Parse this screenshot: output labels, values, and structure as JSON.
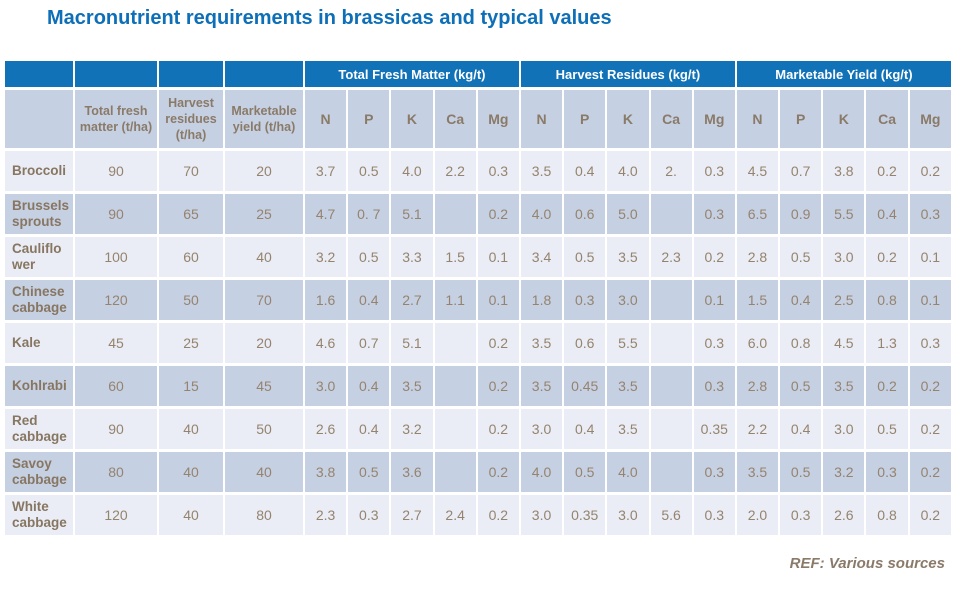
{
  "title": "Macronutrient requirements in brassicas and typical values",
  "footer": {
    "ref": "REF: Various sources"
  },
  "colors": {
    "title_blue": "#0d6fb7",
    "header_blue": "#1172b8",
    "row_light": "#eaedf5",
    "row_dark": "#c6d0e3",
    "text_brown": "#8a7a68"
  },
  "table": {
    "groups": [
      "Total Fresh Matter (kg/t)",
      "Harvest Residues (kg/t)",
      "Marketable Yield (kg/t)"
    ],
    "stub_headers": [
      "Total fresh matter (t/ha)",
      "Harvest residues (t/ha)",
      "Marketable yield (t/ha)"
    ],
    "nutrients": [
      "N",
      "P",
      "K",
      "Ca",
      "Mg"
    ],
    "rows": [
      {
        "crop": "Broccoli",
        "values": [
          "90",
          "70",
          "20",
          "3.7",
          "0.5",
          "4.0",
          "2.2",
          "0.3",
          "3.5",
          "0.4",
          "4.0",
          "2.",
          "0.3",
          "4.5",
          "0.7",
          "3.8",
          "0.2",
          "0.2"
        ]
      },
      {
        "crop": "Brussels sprouts",
        "values": [
          "90",
          "65",
          "25",
          "4.7",
          "0. 7",
          "5.1",
          "",
          "0.2",
          "4.0",
          "0.6",
          "5.0",
          "",
          "0.3",
          "6.5",
          "0.9",
          "5.5",
          "0.4",
          "0.3"
        ]
      },
      {
        "crop": "Cauliflower",
        "values": [
          "100",
          "60",
          "40",
          "3.2",
          "0.5",
          "3.3",
          "1.5",
          "0.1",
          "3.4",
          "0.5",
          "3.5",
          "2.3",
          "0.2",
          "2.8",
          "0.5",
          "3.0",
          "0.2",
          "0.1"
        ]
      },
      {
        "crop": "Chinese cabbage",
        "values": [
          "120",
          "50",
          "70",
          "1.6",
          "0.4",
          "2.7",
          "1.1",
          "0.1",
          "1.8",
          "0.3",
          "3.0",
          "",
          "0.1",
          "1.5",
          "0.4",
          "2.5",
          "0.8",
          "0.1"
        ]
      },
      {
        "crop": "Kale",
        "values": [
          "45",
          "25",
          "20",
          "4.6",
          "0.7",
          "5.1",
          "",
          "0.2",
          "3.5",
          "0.6",
          "5.5",
          "",
          "0.3",
          "6.0",
          "0.8",
          "4.5",
          "1.3",
          "0.3"
        ]
      },
      {
        "crop": "Kohlrabi",
        "values": [
          "60",
          "15",
          "45",
          "3.0",
          "0.4",
          "3.5",
          "",
          "0.2",
          "3.5",
          "0.45",
          "3.5",
          "",
          "0.3",
          "2.8",
          "0.5",
          "3.5",
          "0.2",
          "0.2"
        ]
      },
      {
        "crop": "Red cabbage",
        "values": [
          "90",
          "40",
          "50",
          "2.6",
          "0.4",
          "3.2",
          "",
          "0.2",
          "3.0",
          "0.4",
          "3.5",
          "",
          "0.35",
          "2.2",
          "0.4",
          "3.0",
          "0.5",
          "0.2"
        ]
      },
      {
        "crop": "Savoy cabbage",
        "values": [
          "80",
          "40",
          "40",
          "3.8",
          "0.5",
          "3.6",
          "",
          "0.2",
          "4.0",
          "0.5",
          "4.0",
          "",
          "0.3",
          "3.5",
          "0.5",
          "3.2",
          "0.3",
          "0.2"
        ]
      },
      {
        "crop": "White cabbage",
        "values": [
          "120",
          "40",
          "80",
          "2.3",
          "0.3",
          "2.7",
          "2.4",
          "0.2",
          "3.0",
          "0.35",
          "3.0",
          "5.6",
          "0.3",
          "2.0",
          "0.3",
          "2.6",
          "0.8",
          "0.2"
        ]
      }
    ]
  }
}
